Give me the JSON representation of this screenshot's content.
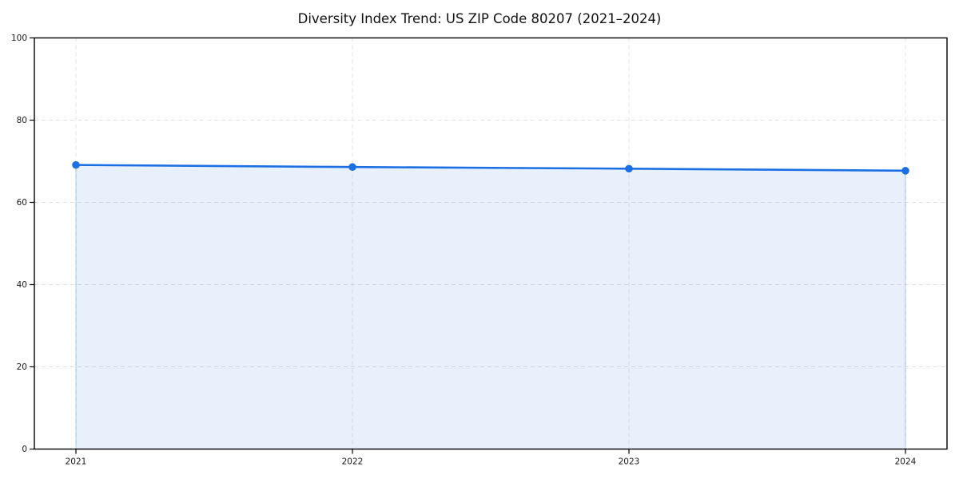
{
  "figure": {
    "background": "#ffffff"
  },
  "chart_data": {
    "type": "area",
    "title": "Diversity Index Trend: US ZIP Code 80207 (2021–2024)",
    "x": [
      "2021",
      "2022",
      "2023",
      "2024"
    ],
    "series": [
      {
        "name": "Diversity Index",
        "values": [
          69.1,
          68.6,
          68.2,
          67.7
        ]
      }
    ],
    "xlabel": "",
    "ylabel": "",
    "ylim": [
      0,
      100
    ],
    "yticks": [
      0,
      20,
      40,
      60,
      80,
      100
    ],
    "grid": true,
    "grid_style": "dashed",
    "legend_position": "none",
    "line_color": "#1c6fe3",
    "marker_color": "#1c6fe3",
    "fill_color": "#1c6fe3",
    "fill_opacity": 0.1,
    "fill_edge_opacity": 0.25,
    "grid_color": "#e2e2e2",
    "axis_color": "#000000",
    "text_color": "#1a1a1a"
  }
}
